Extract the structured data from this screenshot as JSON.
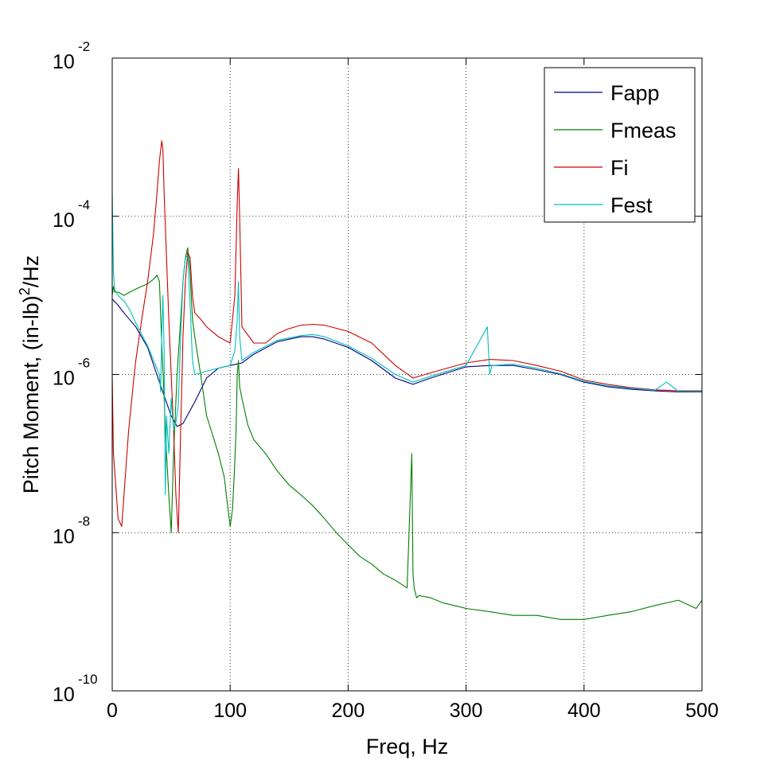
{
  "chart_data": {
    "type": "line",
    "title": "",
    "xlabel": "Freq, Hz",
    "ylabel": "Pitch Moment, (in-lb)",
    "ylabel_superscript": "2",
    "ylabel_suffix": "/Hz",
    "xlim": [
      0,
      500
    ],
    "ylim": [
      1e-10,
      0.01
    ],
    "yscale": "log",
    "grid": true,
    "legend_position": "top-right",
    "x_ticks": [
      {
        "value": 0,
        "label": "0"
      },
      {
        "value": 100,
        "label": "100"
      },
      {
        "value": 200,
        "label": "200"
      },
      {
        "value": 300,
        "label": "300"
      },
      {
        "value": 400,
        "label": "400"
      },
      {
        "value": 500,
        "label": "500"
      }
    ],
    "y_ticks": [
      {
        "value": 1e-10,
        "base": "10",
        "exponent": "-10"
      },
      {
        "value": 1e-08,
        "base": "10",
        "exponent": "-8"
      },
      {
        "value": 1e-06,
        "base": "10",
        "exponent": "-6"
      },
      {
        "value": 0.0001,
        "base": "10",
        "exponent": "-4"
      },
      {
        "value": 0.01,
        "base": "10",
        "exponent": "-2"
      }
    ],
    "series": [
      {
        "name": "Fapp",
        "color": "#00007f",
        "x": [
          0,
          5,
          10,
          20,
          30,
          40,
          50,
          55,
          60,
          70,
          80,
          90,
          100,
          110,
          120,
          140,
          160,
          170,
          180,
          200,
          220,
          240,
          255,
          270,
          300,
          320,
          340,
          360,
          380,
          400,
          420,
          440,
          460,
          480,
          500
        ],
        "y": [
          9e-06,
          7.5e-06,
          6e-06,
          4e-06,
          2.2e-06,
          8e-07,
          3e-07,
          2.2e-07,
          2.4e-07,
          4.5e-07,
          9e-07,
          1.2e-06,
          1.3e-06,
          1.4e-06,
          1.8e-06,
          2.6e-06,
          3e-06,
          3e-06,
          2.8e-06,
          2.2e-06,
          1.5e-06,
          9e-07,
          7.5e-07,
          9e-07,
          1.25e-06,
          1.3e-06,
          1.3e-06,
          1.15e-06,
          1e-06,
          8e-07,
          7e-07,
          6.5e-07,
          6.2e-07,
          6e-07,
          6e-07
        ]
      },
      {
        "name": "Fmeas",
        "color": "#007f00",
        "x": [
          0,
          1,
          2,
          5,
          10,
          15,
          20,
          25,
          30,
          35,
          38,
          40,
          42,
          44,
          46,
          48,
          50,
          52,
          55,
          58,
          60,
          62,
          64,
          66,
          68,
          70,
          75,
          80,
          90,
          95,
          100,
          102,
          104,
          105,
          106,
          107,
          108,
          110,
          115,
          120,
          130,
          140,
          150,
          160,
          170,
          180,
          190,
          200,
          210,
          220,
          230,
          240,
          250,
          254,
          255,
          256,
          258,
          260,
          270,
          280,
          290,
          300,
          320,
          340,
          360,
          380,
          400,
          420,
          440,
          460,
          480,
          495,
          500
        ],
        "y": [
          1e-05,
          1.3e-05,
          1.1e-05,
          1.1e-05,
          1e-05,
          1.1e-05,
          1.2e-05,
          1.3e-05,
          1.4e-05,
          1.6e-05,
          1.8e-05,
          1.5e-05,
          2.5e-06,
          5e-07,
          1e-07,
          3e-08,
          1e-08,
          1e-07,
          1e-06,
          5e-06,
          1.5e-05,
          3e-05,
          4e-05,
          2e-05,
          5e-06,
          3e-06,
          1e-06,
          3e-07,
          1e-07,
          5e-08,
          1.2e-08,
          2e-08,
          8e-08,
          2e-07,
          1e-06,
          1.5e-06,
          7e-07,
          5e-07,
          2.3e-07,
          1.5e-07,
          1e-07,
          6e-08,
          4e-08,
          3e-08,
          2.2e-08,
          1.5e-08,
          1e-08,
          7e-09,
          5e-09,
          4e-09,
          3e-09,
          2.5e-09,
          2e-09,
          1e-07,
          3e-09,
          2e-09,
          1.5e-09,
          1.6e-09,
          1.5e-09,
          1.3e-09,
          1.2e-09,
          1.1e-09,
          1e-09,
          9e-10,
          9e-10,
          8e-10,
          8e-10,
          9e-10,
          1e-09,
          1.2e-09,
          1.4e-09,
          1.1e-09,
          1.4e-09
        ]
      },
      {
        "name": "Fi",
        "color": "#cc0000",
        "x": [
          0,
          1,
          3,
          5,
          8,
          10,
          12,
          14,
          16,
          18,
          20,
          25,
          30,
          35,
          38,
          40,
          42,
          43,
          44,
          46,
          48,
          50,
          52,
          54,
          56,
          58,
          60,
          62,
          64,
          66,
          68,
          70,
          75,
          80,
          90,
          100,
          104,
          106,
          107,
          108,
          110,
          120,
          130,
          140,
          150,
          160,
          170,
          180,
          200,
          220,
          240,
          255,
          270,
          300,
          320,
          340,
          360,
          380,
          400,
          420,
          440,
          460,
          480,
          500
        ],
        "y": [
          1e-06,
          1e-07,
          4e-08,
          1.5e-08,
          1.2e-08,
          3e-08,
          8e-08,
          2e-07,
          4e-07,
          8e-07,
          1.5e-06,
          5e-06,
          1.5e-05,
          6e-05,
          0.0002,
          0.0005,
          0.0009,
          0.0007,
          0.0002,
          3e-05,
          5e-06,
          1e-06,
          2e-07,
          3e-08,
          1e-08,
          2e-07,
          3e-06,
          1.5e-05,
          3.5e-05,
          3e-05,
          1e-05,
          6e-06,
          5e-06,
          4e-06,
          3e-06,
          2.5e-06,
          1e-05,
          0.00015,
          0.0004,
          0.0001,
          4e-06,
          2.5e-06,
          2.5e-06,
          3.3e-06,
          3.8e-06,
          4.2e-06,
          4.3e-06,
          4.2e-06,
          3.5e-06,
          2.5e-06,
          1.3e-06,
          9e-07,
          1.05e-06,
          1.4e-06,
          1.55e-06,
          1.5e-06,
          1.3e-06,
          1.1e-06,
          8.5e-07,
          7.5e-07,
          6.8e-07,
          6.4e-07,
          6.2e-07,
          6.2e-07
        ]
      },
      {
        "name": "Fest",
        "color": "#00bfbf",
        "x": [
          0,
          1,
          2,
          3,
          5,
          8,
          10,
          15,
          20,
          30,
          35,
          40,
          41,
          42,
          43,
          44,
          45,
          46,
          48,
          50,
          52,
          54,
          56,
          58,
          60,
          62,
          64,
          66,
          68,
          70,
          80,
          90,
          100,
          104,
          106,
          107,
          108,
          110,
          120,
          140,
          160,
          170,
          180,
          200,
          220,
          240,
          255,
          270,
          300,
          318,
          320,
          322,
          340,
          360,
          380,
          400,
          420,
          440,
          460,
          470,
          480,
          500
        ],
        "y": [
          0.0002,
          2e-05,
          1.2e-05,
          1.1e-05,
          1e-05,
          9e-06,
          8.5e-06,
          6.5e-06,
          4.5e-06,
          2.3e-06,
          1.5e-06,
          1e-06,
          6e-07,
          3e-06,
          1e-05,
          2e-06,
          3e-08,
          3e-07,
          1e-07,
          5e-07,
          2e-07,
          2.5e-07,
          4e-07,
          3e-06,
          1.5e-05,
          3e-05,
          3.2e-05,
          8e-06,
          1.5e-06,
          1e-06,
          1.1e-06,
          1.2e-06,
          1.3e-06,
          2e-06,
          5e-06,
          1.5e-05,
          3e-06,
          1.5e-06,
          1.9e-06,
          2.7e-06,
          3.1e-06,
          3.2e-06,
          3e-06,
          2.3e-06,
          1.6e-06,
          1e-06,
          8e-07,
          9.5e-07,
          1.3e-06,
          4e-06,
          1e-06,
          1.3e-06,
          1.35e-06,
          1.2e-06,
          1.02e-06,
          8.2e-07,
          7.2e-07,
          6.7e-07,
          6.3e-07,
          8e-07,
          6.1e-07,
          6.1e-07
        ]
      }
    ]
  }
}
